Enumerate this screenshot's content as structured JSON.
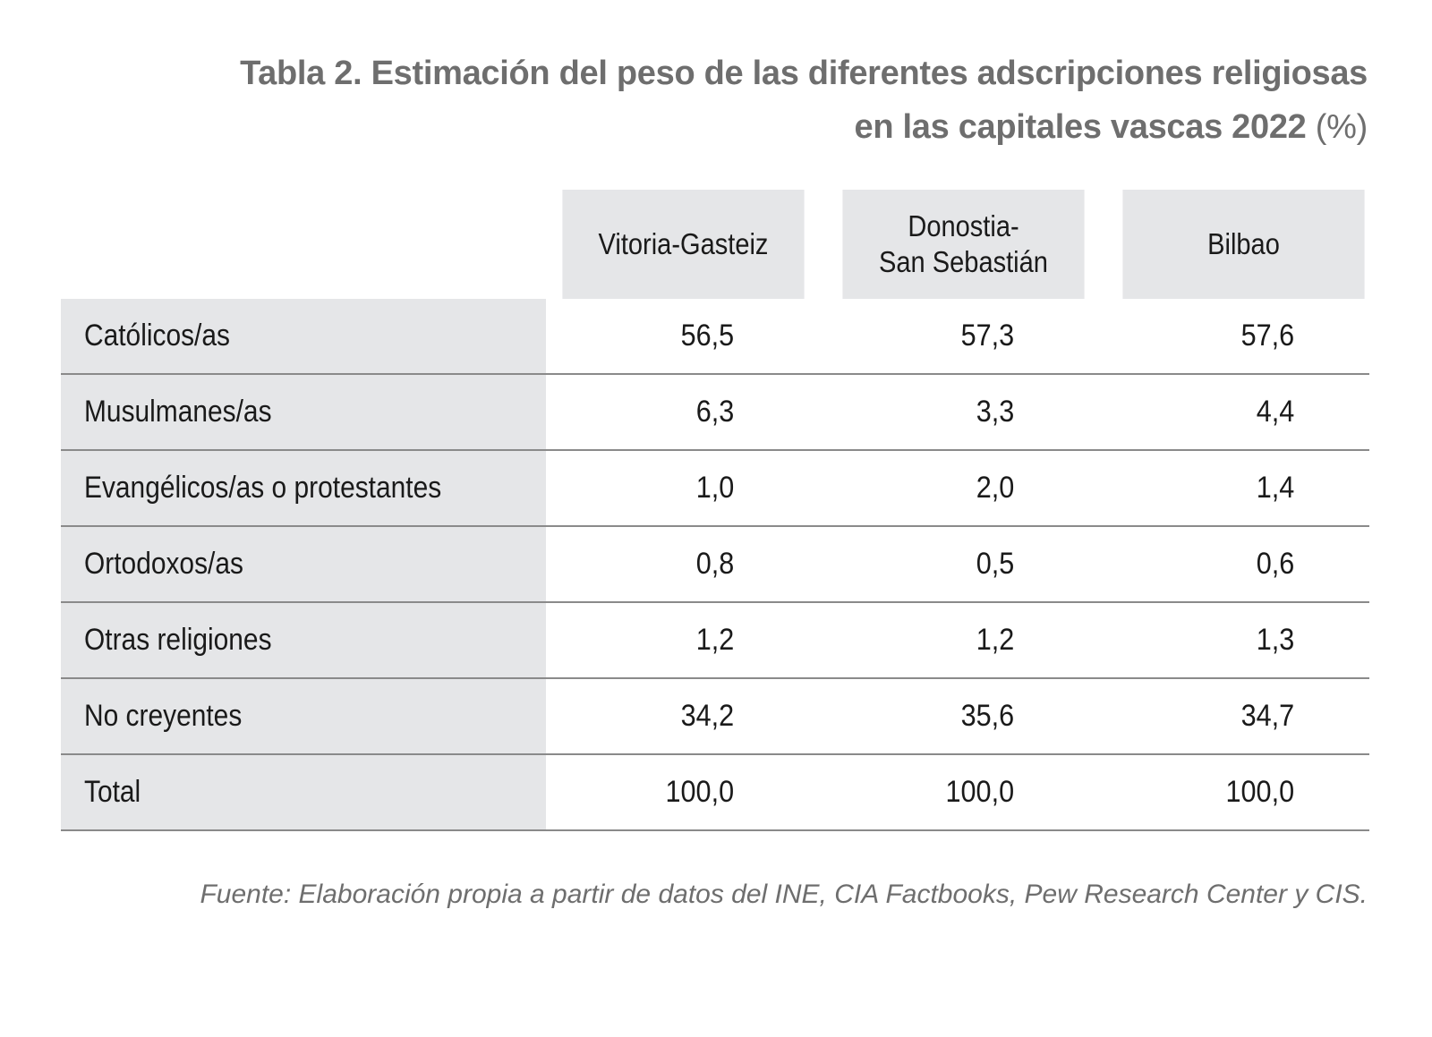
{
  "title": {
    "line1": "Tabla 2. Estimación del peso de las diferentes adscripciones religiosas",
    "line2": "en las capitales vascas 2022",
    "unit": "(%)"
  },
  "columns": [
    "Vitoria-Gasteiz",
    "Donostia-\nSan Sebastián",
    "Bilbao"
  ],
  "rows": [
    {
      "label": "Católicos/as",
      "values": [
        "56,5",
        "57,3",
        "57,6"
      ]
    },
    {
      "label": "Musulmanes/as",
      "values": [
        "6,3",
        "3,3",
        "4,4"
      ]
    },
    {
      "label": "Evangélicos/as o protestantes",
      "values": [
        "1,0",
        "2,0",
        "1,4"
      ]
    },
    {
      "label": "Ortodoxos/as",
      "values": [
        "0,8",
        "0,5",
        "0,6"
      ]
    },
    {
      "label": "Otras religiones",
      "values": [
        "1,2",
        "1,2",
        "1,3"
      ]
    },
    {
      "label": "No creyentes",
      "values": [
        "34,2",
        "35,6",
        "34,7"
      ]
    },
    {
      "label": "Total",
      "values": [
        "100,0",
        "100,0",
        "100,0"
      ]
    }
  ],
  "source": "Fuente: Elaboración propia a partir de datos del INE, CIA Factbooks, Pew Research Center y CIS.",
  "colors": {
    "title": "#6e6e6e",
    "cell_background": "#e5e6e8",
    "rule": "#8a8a8a"
  }
}
